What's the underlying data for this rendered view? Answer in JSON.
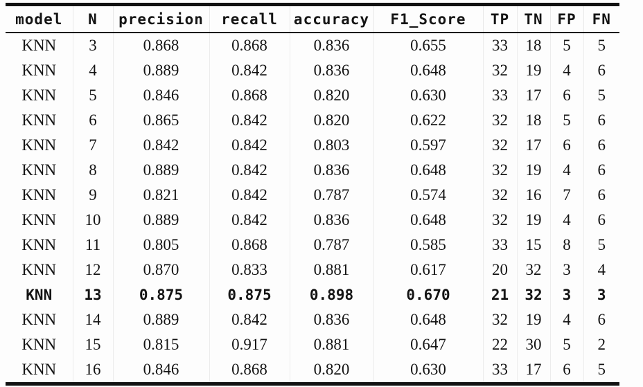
{
  "page": {
    "background": "#fdfdfd",
    "text_color": "#141414",
    "rule_color": "#121212",
    "faint_grid_color": "#ececec"
  },
  "table": {
    "columns": [
      "model",
      "N",
      "precision",
      "recall",
      "accuracy",
      "F1_Score",
      "TP",
      "TN",
      "FP",
      "FN"
    ],
    "rows": [
      [
        "KNN",
        "3",
        "0.868",
        "0.868",
        "0.836",
        "0.655",
        "33",
        "18",
        "5",
        "5"
      ],
      [
        "KNN",
        "4",
        "0.889",
        "0.842",
        "0.836",
        "0.648",
        "32",
        "19",
        "4",
        "6"
      ],
      [
        "KNN",
        "5",
        "0.846",
        "0.868",
        "0.820",
        "0.630",
        "33",
        "17",
        "6",
        "5"
      ],
      [
        "KNN",
        "6",
        "0.865",
        "0.842",
        "0.820",
        "0.622",
        "32",
        "18",
        "5",
        "6"
      ],
      [
        "KNN",
        "7",
        "0.842",
        "0.842",
        "0.803",
        "0.597",
        "32",
        "17",
        "6",
        "6"
      ],
      [
        "KNN",
        "8",
        "0.889",
        "0.842",
        "0.836",
        "0.648",
        "32",
        "19",
        "4",
        "6"
      ],
      [
        "KNN",
        "9",
        "0.821",
        "0.842",
        "0.787",
        "0.574",
        "32",
        "16",
        "7",
        "6"
      ],
      [
        "KNN",
        "10",
        "0.889",
        "0.842",
        "0.836",
        "0.648",
        "32",
        "19",
        "4",
        "6"
      ],
      [
        "KNN",
        "11",
        "0.805",
        "0.868",
        "0.787",
        "0.585",
        "33",
        "15",
        "8",
        "5"
      ],
      [
        "KNN",
        "12",
        "0.870",
        "0.833",
        "0.881",
        "0.617",
        "20",
        "32",
        "3",
        "4"
      ],
      [
        "KNN",
        "13",
        "0.875",
        "0.875",
        "0.898",
        "0.670",
        "21",
        "32",
        "3",
        "3"
      ],
      [
        "KNN",
        "14",
        "0.889",
        "0.842",
        "0.836",
        "0.648",
        "32",
        "19",
        "4",
        "6"
      ],
      [
        "KNN",
        "15",
        "0.815",
        "0.917",
        "0.881",
        "0.647",
        "22",
        "30",
        "5",
        "2"
      ],
      [
        "KNN",
        "16",
        "0.846",
        "0.868",
        "0.820",
        "0.630",
        "33",
        "17",
        "6",
        "5"
      ]
    ],
    "bold_row_index": 10
  }
}
